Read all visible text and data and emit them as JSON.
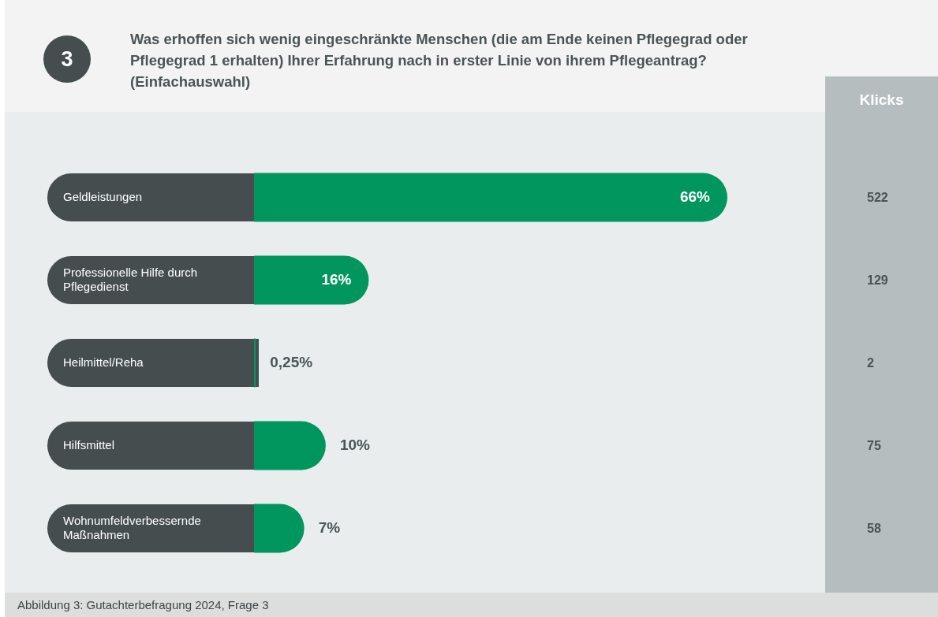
{
  "chart_data": {
    "type": "bar",
    "orientation": "horizontal",
    "title": "Was erhoffen sich wenig eingeschränkte Menschen (die am Ende keinen Pflegegrad oder Pflegegrad 1 erhalten) Ihrer Erfahrung nach in erster Linie von ihrem Pflegeantrag? (Einfachauswahl)",
    "categories": [
      "Geldleistungen",
      "Professionelle Hilfe durch Pflegedienst",
      "Heilmittel/Reha",
      "Hilfsmittel",
      "Wohnumfeldverbessernde Maßnahmen"
    ],
    "values": [
      66,
      16,
      0.25,
      10,
      7
    ],
    "value_labels": [
      "66%",
      "16%",
      "0,25%",
      "10%",
      "7%"
    ],
    "color": "#00965e",
    "legend": false,
    "annotations": [
      "3",
      "Klicks",
      "Abbildung 3: Gutachterbefragung 2024, Frage 3",
      "522",
      "129",
      "2",
      "75",
      "58"
    ]
  }
}
